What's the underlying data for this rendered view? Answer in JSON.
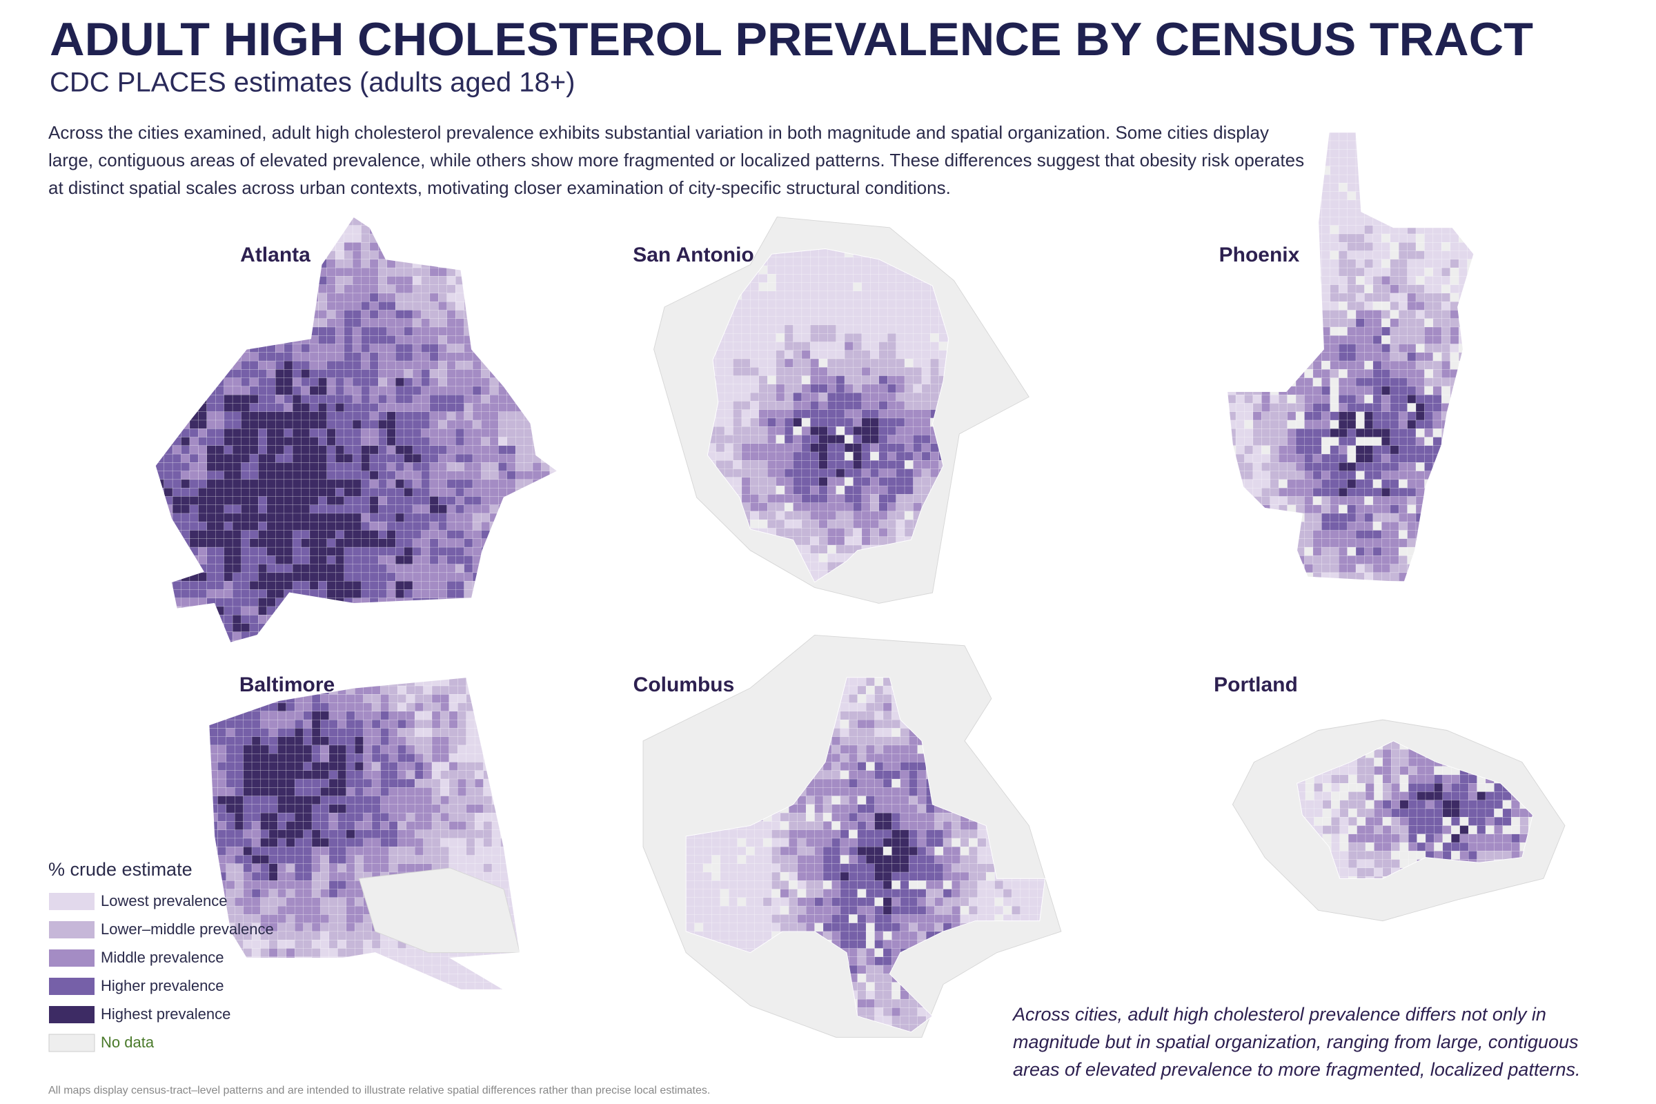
{
  "header": {
    "title": "ADULT HIGH CHOLESTEROL PREVALENCE BY CENSUS TRACT",
    "subtitle": "CDC PLACES estimates (adults aged 18+)",
    "intro": "Across the cities examined, adult high cholesterol prevalence exhibits substantial variation in both magnitude and spatial organization. Some cities display large, contiguous areas of elevated prevalence, while others show more fragmented or localized patterns. These differences suggest that obesity risk operates at distinct spatial scales across urban contexts, motivating closer examination of city-specific structural conditions."
  },
  "maps": [
    {
      "city": "Atlanta"
    },
    {
      "city": "San Antonio"
    },
    {
      "city": "Phoenix"
    },
    {
      "city": "Baltimore"
    },
    {
      "city": "Columbus"
    },
    {
      "city": "Portland"
    }
  ],
  "legend": {
    "title": "% crude estimate",
    "items": [
      {
        "label": "Lowest prevalence",
        "color": "#e2d9ec"
      },
      {
        "label": "Lower–middle prevalence",
        "color": "#c6b7d8"
      },
      {
        "label": "Middle prevalence",
        "color": "#a48cc4"
      },
      {
        "label": "Higher prevalence",
        "color": "#7660a8"
      },
      {
        "label": "Highest prevalence",
        "color": "#3d2b64"
      }
    ],
    "no_data": {
      "label": "No data",
      "color": "#eeeeee"
    }
  },
  "annotation": "Across cities, adult high cholesterol prevalence differs not only in magnitude but in spatial organization, ranging from large, contiguous areas of elevated prevalence to more fragmented, localized patterns.",
  "footnote": "All maps display census-tract–level patterns and are intended to illustrate relative spatial differences rather than precise local estimates."
}
